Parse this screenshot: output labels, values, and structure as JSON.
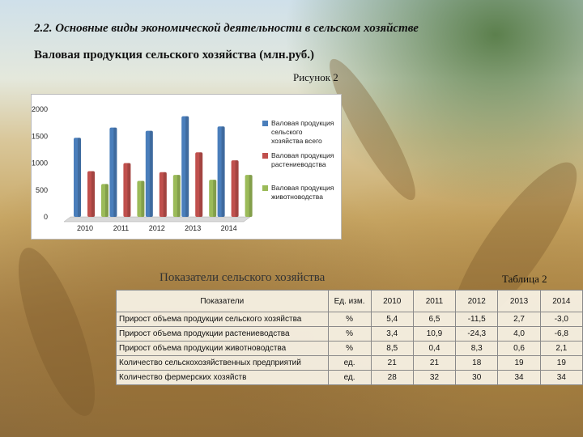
{
  "header": {
    "section_title": "2.2. Основные виды экономической деятельности в сельском хозяйстве",
    "subtitle": "Валовая продукция сельского хозяйства (млн.руб.)",
    "figure_label": "Рисунок 2"
  },
  "chart_data": {
    "type": "bar",
    "categories": [
      "2010",
      "2011",
      "2012",
      "2013",
      "2014"
    ],
    "series": [
      {
        "name": "Валовая продукция сельского хозяйства всего",
        "color": "#4a7ebb",
        "values": [
          1470,
          1660,
          1600,
          1870,
          1680
        ]
      },
      {
        "name": "Валовая продукция растениеводства",
        "color": "#c0504d",
        "values": [
          850,
          1000,
          830,
          1200,
          1050
        ]
      },
      {
        "name": "Валовая продукция животноводства",
        "color": "#9bbb59",
        "values": [
          610,
          670,
          780,
          690,
          780
        ]
      }
    ],
    "yticks": [
      "0",
      "500",
      "1000",
      "1500",
      "2000"
    ],
    "ylim": [
      0,
      2000
    ],
    "legend_position": "right",
    "grid": false
  },
  "table": {
    "title": "Показатели сельского хозяйства",
    "number_label": "Таблица 2",
    "headers": [
      "Показатели",
      "Ед. изм.",
      "2010",
      "2011",
      "2012",
      "2013",
      "2014"
    ],
    "rows": [
      [
        "Прирост объема продукции сельского хозяйства",
        "%",
        "5,4",
        "6,5",
        "-11,5",
        "2,7",
        "-3,0"
      ],
      [
        "Прирост объема продукции растениеводства",
        "%",
        "3,4",
        "10,9",
        "-24,3",
        "4,0",
        "-6,8"
      ],
      [
        "Прирост объема продукции животноводства",
        "%",
        "8,5",
        "0,4",
        "8,3",
        "0,6",
        "2,1"
      ],
      [
        "Количество сельскохозяйственных предприятий",
        "ед.",
        "21",
        "21",
        "18",
        "19",
        "19"
      ],
      [
        "Количество фермерских хозяйств",
        "ед.",
        "28",
        "32",
        "30",
        "34",
        "34"
      ]
    ]
  }
}
